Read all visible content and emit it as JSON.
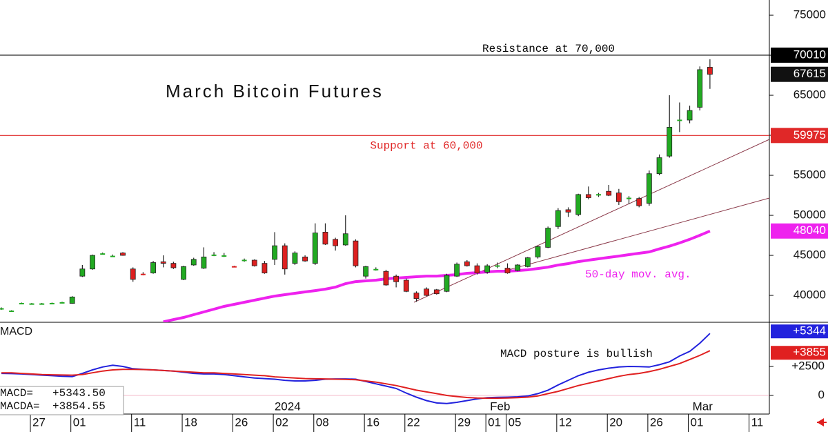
{
  "chart_data": {
    "type": "candlestick",
    "title": "March Bitcoin Futures",
    "categories": [
      null,
      null,
      null,
      "27",
      null,
      null,
      null,
      "01",
      null,
      null,
      null,
      null,
      null,
      "11",
      null,
      null,
      null,
      null,
      "18",
      null,
      null,
      null,
      null,
      "26",
      null,
      null,
      null,
      "02",
      null,
      null,
      null,
      "08",
      null,
      null,
      null,
      null,
      "16",
      null,
      null,
      null,
      "22",
      null,
      null,
      null,
      null,
      "29",
      null,
      null,
      "01",
      null,
      "05",
      null,
      null,
      null,
      null,
      "12",
      null,
      null,
      null,
      null,
      "20",
      null,
      null,
      null,
      "26",
      null,
      null,
      null,
      "01",
      null,
      null,
      null,
      null,
      null,
      "11"
    ],
    "months": [
      null,
      null,
      null,
      null,
      null,
      null,
      null,
      null,
      null,
      null,
      null,
      null,
      null,
      null,
      null,
      null,
      null,
      null,
      null,
      null,
      null,
      null,
      null,
      null,
      null,
      null,
      null,
      null,
      "2024",
      null,
      null,
      null,
      null,
      null,
      null,
      null,
      null,
      null,
      null,
      null,
      null,
      null,
      null,
      null,
      null,
      null,
      null,
      null,
      null,
      "Feb",
      null,
      null,
      null,
      null,
      null,
      null,
      null,
      null,
      null,
      null,
      null,
      null,
      null,
      null,
      null,
      null,
      null,
      null,
      null,
      "Mar",
      null,
      null,
      null,
      null,
      null
    ],
    "open": [
      38300,
      38100,
      39050,
      39000,
      39000,
      39050,
      39100,
      39000,
      42400,
      43300,
      45250,
      44900,
      45300,
      43300,
      42700,
      42800,
      44200,
      44000,
      42000,
      43800,
      43400,
      45100,
      45000,
      43650,
      44400,
      44400,
      44000,
      44500,
      46200,
      44000,
      44800,
      44000,
      47900,
      47000,
      46300,
      46800,
      42400,
      43300,
      43000,
      42400,
      41900,
      40300,
      40800,
      40700,
      40500,
      42400,
      44200,
      43700,
      42900,
      43700,
      43400,
      43100,
      43600,
      44800,
      46000,
      48600,
      50700,
      50100,
      52600,
      52600,
      53000,
      52800,
      52200,
      52100,
      51500,
      55200,
      57400,
      61900,
      61900,
      63500,
      68500,
      null,
      null,
      null,
      null
    ],
    "high": [
      38500,
      38150,
      39100,
      39050,
      39050,
      39100,
      39200,
      39900,
      43800,
      45100,
      45350,
      45100,
      45400,
      43500,
      42900,
      44300,
      45000,
      44200,
      43700,
      44700,
      46000,
      45400,
      45300,
      43700,
      44600,
      44500,
      44300,
      47900,
      46500,
      45500,
      45000,
      49000,
      49000,
      47200,
      50000,
      47000,
      43700,
      43500,
      43200,
      42600,
      42100,
      40500,
      41000,
      40800,
      42700,
      44100,
      44400,
      44000,
      43900,
      44100,
      44000,
      43900,
      44800,
      46200,
      48600,
      50900,
      51000,
      52700,
      53600,
      52800,
      53800,
      53300,
      52400,
      52300,
      55600,
      57600,
      65000,
      64100,
      63700,
      68600,
      69500,
      null,
      null,
      null,
      null
    ],
    "low": [
      38200,
      38050,
      39000,
      38950,
      38950,
      39000,
      39000,
      38950,
      42300,
      43200,
      45150,
      44800,
      44950,
      41700,
      42500,
      42700,
      43500,
      43300,
      41900,
      43700,
      43300,
      44900,
      44800,
      43500,
      44200,
      43600,
      42700,
      43800,
      42600,
      43800,
      44200,
      43800,
      46300,
      45600,
      46200,
      43500,
      42100,
      43100,
      41200,
      41000,
      40400,
      39200,
      39900,
      40100,
      40400,
      42300,
      43600,
      42600,
      42700,
      43400,
      42700,
      43000,
      43500,
      44600,
      45900,
      48300,
      49800,
      49900,
      52000,
      52300,
      52400,
      51300,
      51400,
      51000,
      51200,
      55000,
      57200,
      60400,
      61500,
      63100,
      65800,
      null,
      null,
      null,
      null
    ],
    "close": [
      38400,
      38100,
      39050,
      39000,
      39000,
      39050,
      39150,
      39800,
      43300,
      45000,
      45250,
      44950,
      45000,
      42000,
      42600,
      44100,
      44000,
      43450,
      43600,
      44500,
      44800,
      45100,
      45000,
      43550,
      44450,
      43700,
      42800,
      46200,
      43300,
      45300,
      44300,
      47800,
      46400,
      46200,
      47700,
      43700,
      43600,
      43300,
      41300,
      41700,
      40500,
      39600,
      40000,
      40200,
      42500,
      43900,
      43700,
      42800,
      43700,
      43750,
      42800,
      43800,
      44700,
      46100,
      48400,
      50600,
      50400,
      52600,
      52200,
      52650,
      52500,
      51700,
      52200,
      51200,
      55200,
      57200,
      61000,
      61950,
      63100,
      68200,
      67615,
      null,
      null,
      null,
      null
    ],
    "up_color": "#22aa22",
    "down_color": "#dd2020",
    "ylim": [
      36640,
      76900
    ],
    "yticks": [
      40000,
      45000,
      50000,
      55000,
      60000,
      65000,
      70000,
      75000
    ],
    "levels": [
      {
        "label": "Resistance at 70,000",
        "value": 70010,
        "color": "#000000"
      },
      {
        "label": "Support at 60,000",
        "value": 59975,
        "color": "#e02828"
      }
    ],
    "last_color": "#111111",
    "moving_average": {
      "name": "50-day mov. avg.",
      "color": "#ee22ee",
      "values": [
        null,
        null,
        null,
        null,
        null,
        null,
        null,
        null,
        null,
        null,
        null,
        null,
        null,
        null,
        null,
        null,
        36700,
        36980,
        37240,
        37590,
        37930,
        38280,
        38620,
        38880,
        39140,
        39400,
        39660,
        39910,
        40090,
        40260,
        40430,
        40600,
        40780,
        41030,
        41470,
        41720,
        41810,
        41900,
        42070,
        42160,
        42240,
        42330,
        42410,
        42410,
        42500,
        42590,
        42760,
        42840,
        42930,
        43020,
        43020,
        43100,
        43190,
        43360,
        43530,
        43790,
        43970,
        44220,
        44400,
        44570,
        44740,
        44910,
        45090,
        45260,
        45430,
        45800,
        46150,
        46550,
        47000,
        47500,
        48040,
        null,
        null,
        null,
        null
      ]
    },
    "macd": {
      "type": "line",
      "title": "MACD",
      "annotation": "MACD posture is bullish",
      "ylim": [
        -1610,
        6310
      ],
      "yticks": [
        {
          "value": 2500,
          "label": "+2500"
        },
        0
      ],
      "series": [
        {
          "name": "MACD=",
          "color": "#2222dd",
          "readout": "+5343.50",
          "tag": "+5344",
          "values": [
            1900,
            1880,
            1850,
            1800,
            1750,
            1700,
            1650,
            1620,
            1900,
            2200,
            2450,
            2600,
            2500,
            2300,
            2250,
            2200,
            2150,
            2100,
            2000,
            1900,
            1850,
            1850,
            1800,
            1700,
            1600,
            1500,
            1450,
            1400,
            1300,
            1250,
            1250,
            1300,
            1400,
            1420,
            1420,
            1400,
            1200,
            1000,
            800,
            600,
            200,
            -150,
            -450,
            -650,
            -700,
            -600,
            -450,
            -300,
            -200,
            -170,
            -150,
            -120,
            -50,
            150,
            450,
            900,
            1300,
            1700,
            2000,
            2200,
            2350,
            2450,
            2500,
            2480,
            2450,
            2650,
            2900,
            3400,
            3800,
            4500,
            5343.5,
            null,
            null,
            null,
            null
          ]
        },
        {
          "name": "MACDA=",
          "color": "#e02020",
          "readout": "+3854.55",
          "tag": "+3855",
          "values": [
            1950,
            1950,
            1900,
            1850,
            1800,
            1780,
            1760,
            1750,
            1800,
            1950,
            2100,
            2200,
            2250,
            2250,
            2230,
            2200,
            2150,
            2100,
            2050,
            2000,
            1950,
            1950,
            1900,
            1850,
            1800,
            1750,
            1700,
            1600,
            1550,
            1500,
            1450,
            1430,
            1420,
            1400,
            1380,
            1350,
            1250,
            1150,
            1000,
            850,
            650,
            450,
            300,
            150,
            0,
            -100,
            -180,
            -220,
            -240,
            -240,
            -230,
            -200,
            -150,
            -50,
            150,
            350,
            600,
            850,
            1050,
            1250,
            1450,
            1650,
            1800,
            1900,
            2050,
            2250,
            2500,
            2750,
            3100,
            3450,
            3854.55,
            null,
            null,
            null,
            null
          ]
        }
      ]
    }
  }
}
